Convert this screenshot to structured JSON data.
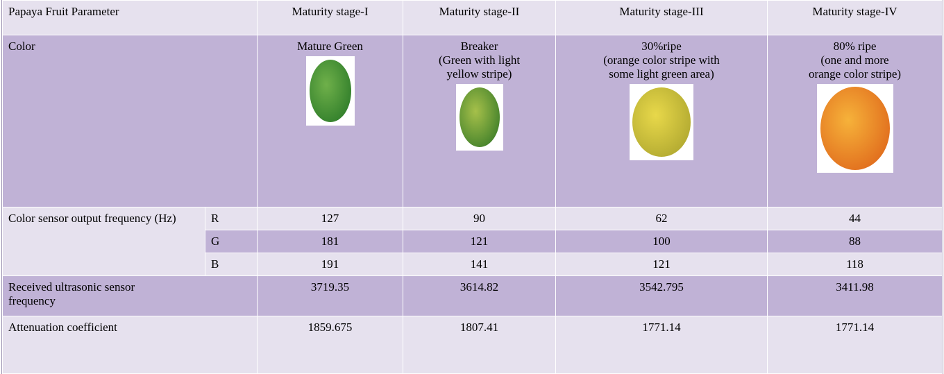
{
  "table": {
    "header": [
      "Papaya Fruit Parameter",
      "Maturity stage-I",
      "Maturity stage-II",
      "Maturity stage-III",
      "Maturity stage-IV"
    ],
    "color": {
      "label": "Color",
      "descriptions": [
        [
          "Mature Green"
        ],
        [
          "Breaker",
          "(Green with light",
          "yellow stripe)"
        ],
        [
          "30%ripe",
          "(orange color stripe with",
          "some light green area)"
        ],
        [
          "80% ripe",
          "(one and more",
          "orange color stripe)"
        ]
      ]
    },
    "sensor": {
      "label": "Color sensor output frequency (Hz)",
      "channels": [
        {
          "name": "R",
          "values": [
            127,
            90,
            62,
            44
          ]
        },
        {
          "name": "G",
          "values": [
            181,
            121,
            100,
            88
          ]
        },
        {
          "name": "B",
          "values": [
            191,
            141,
            121,
            118
          ]
        }
      ]
    },
    "ultrasonic": {
      "label": "Received ultrasonic sensor frequency",
      "values": [
        3719.35,
        3614.82,
        3542.795,
        3411.98
      ]
    },
    "attenuation": {
      "label": "Attenuation coefficient",
      "values": [
        1859.675,
        1807.41,
        1771.14,
        1771.14
      ]
    }
  }
}
